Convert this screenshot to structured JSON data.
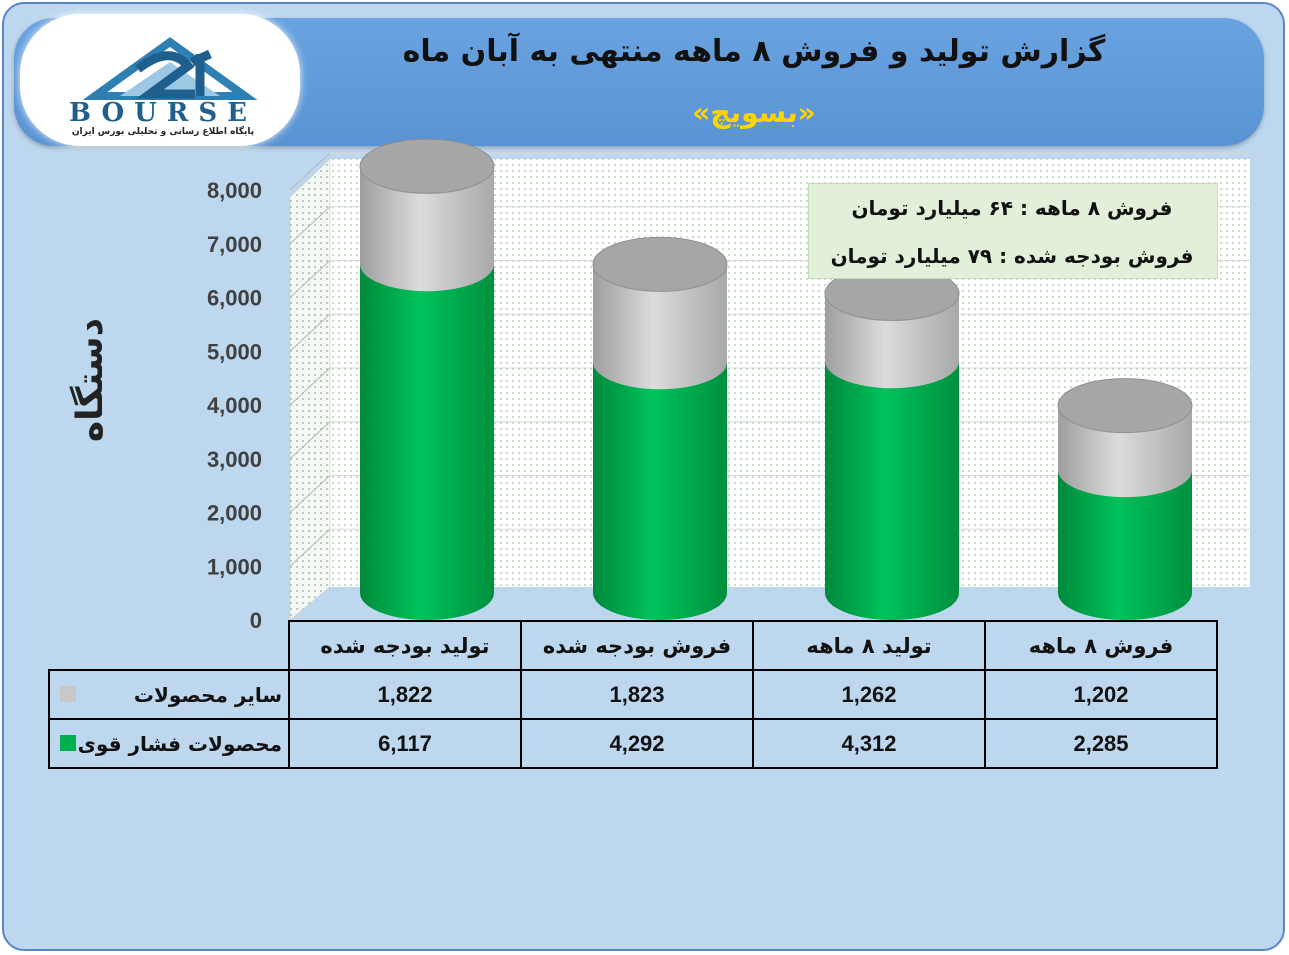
{
  "header": {
    "title": "گزارش تولید و فروش ۸ ماهه منتهی به آبان ماه",
    "subtitle": "«بسویچ»"
  },
  "logo": {
    "text": "BOURSE",
    "tagline": "پایگاه اطلاع رسانی و تحلیلی بورس ایران"
  },
  "info_box": {
    "line1": "فروش ۸ ماهه : ۶۴ میلیارد تومان",
    "line2": "فروش بودجه شده : ۷۹ میلیارد تومان"
  },
  "colors": {
    "series_high_voltage": "#00b050",
    "series_other": "#c8c8c8",
    "frame_bg": "#bdd7ee",
    "header_bg": "#5b9bd5",
    "subtitle": "#ffd400"
  },
  "chart_data": {
    "type": "bar",
    "stacked": true,
    "style": "3d-cylinder",
    "ylabel": "دستگاه",
    "ylim": [
      0,
      8000
    ],
    "yticks": [
      "0",
      "1,000",
      "2,000",
      "3,000",
      "4,000",
      "5,000",
      "6,000",
      "7,000",
      "8,000"
    ],
    "categories": [
      "تولید بودجه شده",
      "فروش بودجه شده",
      "تولید ۸ ماهه",
      "فروش ۸ ماهه"
    ],
    "series": [
      {
        "name": "محصولات فشار قوی",
        "values": [
          6117,
          4292,
          4312,
          2285
        ],
        "labels": [
          "6,117",
          "4,292",
          "4,312",
          "2,285"
        ]
      },
      {
        "name": "سایر محصولات",
        "values": [
          1822,
          1823,
          1262,
          1202
        ],
        "labels": [
          "1,822",
          "1,823",
          "1,262",
          "1,202"
        ]
      }
    ],
    "legend": "table-left"
  }
}
